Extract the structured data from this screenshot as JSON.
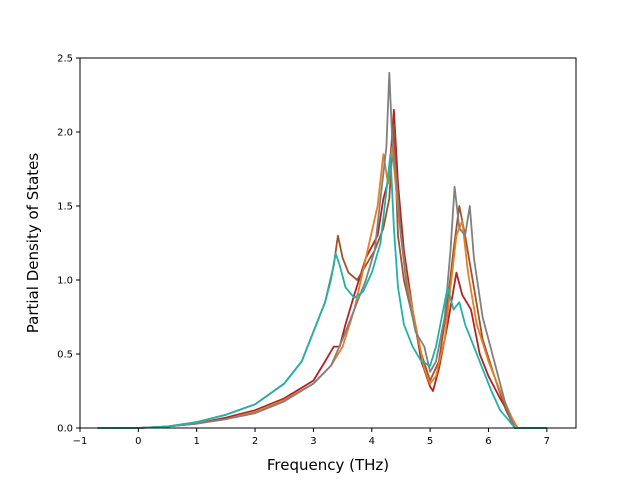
{
  "chart_data": {
    "type": "line",
    "title": "",
    "xlabel": "Frequency (THz)",
    "ylabel": "Partial Density of States",
    "xlim": [
      -1.0,
      7.5
    ],
    "ylim": [
      0.0,
      2.5
    ],
    "xticks": [
      -1,
      0,
      1,
      2,
      3,
      4,
      5,
      6,
      7
    ],
    "yticks": [
      0.0,
      0.5,
      1.0,
      1.5,
      2.0,
      2.5
    ],
    "xtick_labels": [
      "−1",
      "0",
      "1",
      "2",
      "3",
      "4",
      "5",
      "6",
      "7"
    ],
    "ytick_labels": [
      "0.0",
      "0.5",
      "1.0",
      "1.5",
      "2.0",
      "2.5"
    ],
    "grid": false,
    "series": [
      {
        "color": "#b22222",
        "x": [
          -0.7,
          0,
          0.5,
          1.0,
          1.5,
          2.0,
          2.5,
          3.0,
          3.2,
          3.35,
          3.45,
          3.55,
          3.7,
          3.9,
          4.1,
          4.2,
          4.3,
          4.38,
          4.45,
          4.55,
          4.7,
          4.85,
          5.0,
          5.05,
          5.15,
          5.3,
          5.45,
          5.55,
          5.7,
          5.85,
          6.0,
          6.2,
          6.4,
          6.5,
          7.0
        ],
        "y": [
          0.0,
          0.0,
          0.01,
          0.03,
          0.07,
          0.12,
          0.2,
          0.32,
          0.45,
          0.55,
          0.55,
          0.7,
          0.9,
          1.15,
          1.3,
          1.55,
          1.7,
          2.15,
          1.65,
          1.2,
          0.8,
          0.45,
          0.28,
          0.25,
          0.4,
          0.7,
          1.05,
          0.9,
          0.8,
          0.5,
          0.35,
          0.2,
          0.06,
          0.0,
          0.0
        ]
      },
      {
        "color": "#a0522d",
        "x": [
          -0.7,
          0,
          0.5,
          1.0,
          1.5,
          2.0,
          2.5,
          2.8,
          3.0,
          3.2,
          3.35,
          3.42,
          3.5,
          3.6,
          3.75,
          3.9,
          4.05,
          4.2,
          4.3,
          4.38,
          4.45,
          4.55,
          4.7,
          4.85,
          5.0,
          5.15,
          5.3,
          5.4,
          5.5,
          5.6,
          5.75,
          5.9,
          6.1,
          6.3,
          6.45,
          7.0
        ],
        "y": [
          0.0,
          0.0,
          0.01,
          0.04,
          0.09,
          0.16,
          0.3,
          0.45,
          0.65,
          0.85,
          1.1,
          1.3,
          1.15,
          1.05,
          1.0,
          1.1,
          1.2,
          1.35,
          1.55,
          2.05,
          1.3,
          1.0,
          0.75,
          0.5,
          0.32,
          0.45,
          0.85,
          1.2,
          1.5,
          1.3,
          0.95,
          0.6,
          0.35,
          0.12,
          0.0,
          0.0
        ]
      },
      {
        "color": "#e67e22",
        "x": [
          -0.7,
          0,
          0.5,
          1.0,
          1.5,
          2.0,
          2.5,
          3.0,
          3.3,
          3.5,
          3.7,
          3.9,
          4.1,
          4.2,
          4.28,
          4.35,
          4.42,
          4.5,
          4.6,
          4.75,
          4.9,
          5.0,
          5.1,
          5.25,
          5.35,
          5.45,
          5.55,
          5.65,
          5.8,
          6.0,
          6.2,
          6.4,
          6.5,
          7.0
        ],
        "y": [
          0.0,
          0.0,
          0.01,
          0.03,
          0.06,
          0.11,
          0.19,
          0.3,
          0.42,
          0.55,
          0.8,
          1.15,
          1.5,
          1.85,
          1.65,
          1.9,
          1.6,
          1.3,
          1.0,
          0.7,
          0.4,
          0.3,
          0.35,
          0.6,
          0.95,
          1.3,
          1.4,
          1.05,
          0.7,
          0.45,
          0.25,
          0.07,
          0.0,
          0.0
        ]
      },
      {
        "color": "#808080",
        "x": [
          -0.7,
          0,
          0.5,
          1.0,
          1.5,
          2.0,
          2.5,
          3.0,
          3.3,
          3.5,
          3.7,
          3.9,
          4.05,
          4.15,
          4.25,
          4.3,
          4.35,
          4.42,
          4.5,
          4.6,
          4.75,
          4.9,
          5.0,
          5.1,
          5.25,
          5.35,
          5.42,
          5.5,
          5.6,
          5.68,
          5.75,
          5.9,
          6.1,
          6.3,
          6.45,
          7.0
        ],
        "y": [
          0.0,
          0.0,
          0.01,
          0.03,
          0.06,
          0.1,
          0.18,
          0.3,
          0.42,
          0.6,
          0.8,
          1.0,
          1.2,
          1.55,
          1.9,
          2.4,
          1.95,
          1.7,
          1.3,
          0.95,
          0.65,
          0.55,
          0.38,
          0.45,
          0.75,
          1.2,
          1.63,
          1.35,
          1.3,
          1.5,
          1.15,
          0.75,
          0.45,
          0.15,
          0.0,
          0.0
        ]
      },
      {
        "color": "#20b2aa",
        "x": [
          -0.7,
          0,
          0.5,
          1.0,
          1.5,
          2.0,
          2.5,
          2.8,
          3.0,
          3.2,
          3.3,
          3.38,
          3.45,
          3.55,
          3.7,
          3.85,
          4.0,
          4.15,
          4.25,
          4.32,
          4.38,
          4.45,
          4.55,
          4.7,
          4.85,
          5.0,
          5.1,
          5.2,
          5.3,
          5.4,
          5.5,
          5.6,
          5.75,
          5.9,
          6.05,
          6.2,
          6.35,
          6.45,
          7.0
        ],
        "y": [
          0.0,
          0.0,
          0.01,
          0.04,
          0.09,
          0.16,
          0.3,
          0.45,
          0.65,
          0.85,
          1.0,
          1.18,
          1.1,
          0.95,
          0.88,
          0.92,
          1.05,
          1.25,
          1.6,
          1.85,
          1.35,
          0.95,
          0.7,
          0.55,
          0.45,
          0.42,
          0.55,
          0.75,
          0.95,
          0.8,
          0.85,
          0.7,
          0.55,
          0.4,
          0.25,
          0.12,
          0.05,
          0.0,
          0.0
        ]
      }
    ]
  }
}
